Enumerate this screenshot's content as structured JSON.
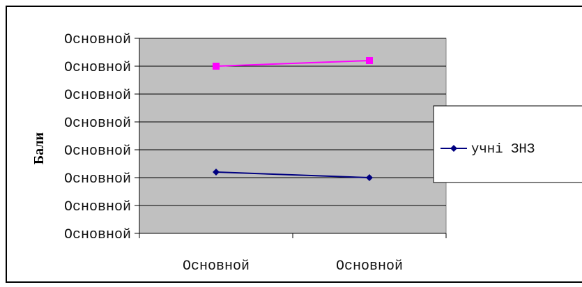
{
  "chart_data": {
    "type": "line",
    "title": "",
    "xlabel": "",
    "ylabel": "Бали",
    "categories": [
      "Основной",
      "Основной"
    ],
    "y_tick_labels": [
      "Основной",
      "Основной",
      "Основной",
      "Основной",
      "Основной",
      "Основной",
      "Основной",
      "Основной"
    ],
    "ylim": [
      0,
      7
    ],
    "grid": true,
    "legend_position": "right",
    "series": [
      {
        "name": "учні ЗНЗ",
        "values": [
          2.2,
          2.0
        ],
        "color": "#000080",
        "marker": "diamond"
      },
      {
        "values": [
          6.0,
          6.2
        ],
        "color": "#ff00ff",
        "marker": "square"
      }
    ],
    "plot_background": "#c0c0c0"
  }
}
